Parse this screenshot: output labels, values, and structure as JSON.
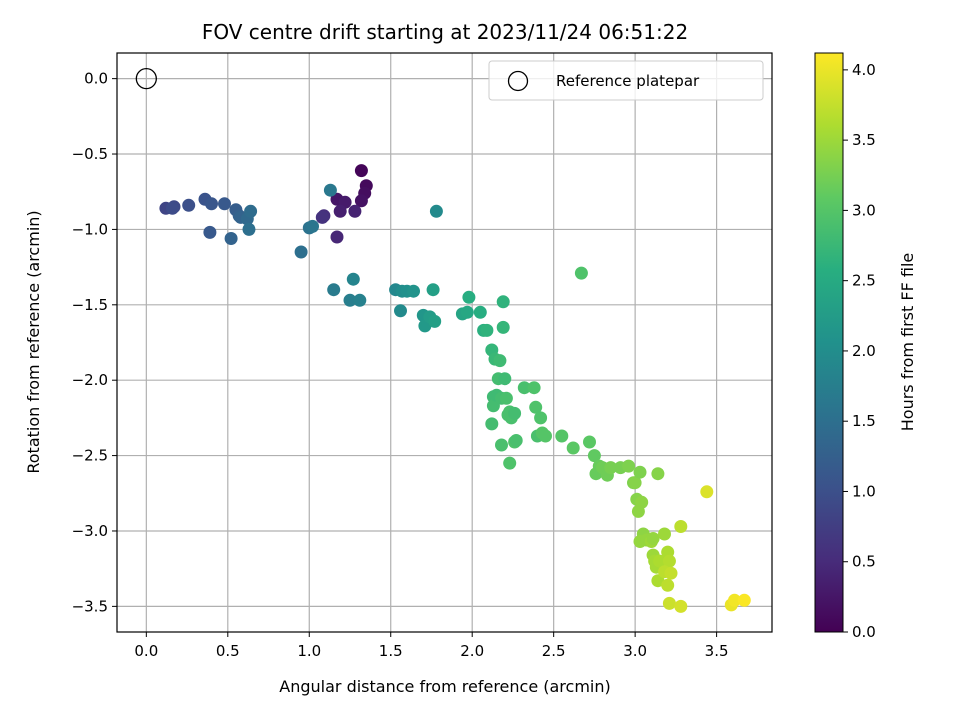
{
  "chart_data": {
    "type": "scatter",
    "title": "FOV centre drift starting at 2023/11/24 06:51:22",
    "xlabel": "Angular distance from reference (arcmin)",
    "ylabel": "Rotation from reference (arcmin)",
    "xlim": [
      -0.18,
      3.84
    ],
    "ylim": [
      -3.67,
      0.17
    ],
    "xticks": [
      0.0,
      0.5,
      1.0,
      1.5,
      2.0,
      2.5,
      3.0,
      3.5
    ],
    "xtick_labels": [
      "0.0",
      "0.5",
      "1.0",
      "1.5",
      "2.0",
      "2.5",
      "3.0",
      "3.5"
    ],
    "yticks": [
      0.0,
      -0.5,
      -1.0,
      -1.5,
      -2.0,
      -2.5,
      -3.0,
      -3.5
    ],
    "ytick_labels": [
      "0.0",
      "−0.5",
      "−1.0",
      "−1.5",
      "−2.0",
      "−2.5",
      "−3.0",
      "−3.5"
    ],
    "grid": true,
    "legend_position": "top-right",
    "reference_point": {
      "label": "Reference platepar",
      "x": 0.0,
      "y": 0.0
    },
    "colorbar": {
      "label": "Hours from first FF file",
      "colormap": "viridis",
      "range": [
        0.0,
        4.12
      ],
      "ticks": [
        0.0,
        0.5,
        1.0,
        1.5,
        2.0,
        2.5,
        3.0,
        3.5,
        4.0
      ],
      "tick_labels": [
        "0.0",
        "0.5",
        "1.0",
        "1.5",
        "2.0",
        "2.5",
        "3.0",
        "3.5",
        "4.0"
      ]
    },
    "points": [
      [
        1.32,
        -0.61,
        0.05
      ],
      [
        1.35,
        -0.71,
        0.1
      ],
      [
        1.34,
        -0.76,
        0.15
      ],
      [
        1.32,
        -0.81,
        0.2
      ],
      [
        1.17,
        -0.8,
        0.25
      ],
      [
        1.22,
        -0.82,
        0.3
      ],
      [
        1.19,
        -0.88,
        0.35
      ],
      [
        1.28,
        -0.88,
        0.4
      ],
      [
        1.17,
        -1.05,
        0.45
      ],
      [
        1.09,
        -0.91,
        0.55
      ],
      [
        1.08,
        -0.92,
        0.6
      ],
      [
        0.12,
        -0.86,
        0.85
      ],
      [
        0.17,
        -0.85,
        0.9
      ],
      [
        0.16,
        -0.86,
        0.95
      ],
      [
        0.26,
        -0.84,
        1.0
      ],
      [
        0.36,
        -0.8,
        1.05
      ],
      [
        0.4,
        -0.83,
        1.1
      ],
      [
        0.48,
        -0.83,
        1.15
      ],
      [
        0.55,
        -0.87,
        1.2
      ],
      [
        0.39,
        -1.02,
        1.15
      ],
      [
        0.52,
        -1.06,
        1.3
      ],
      [
        0.57,
        -0.91,
        1.25
      ],
      [
        0.58,
        -0.92,
        1.3
      ],
      [
        0.62,
        -0.93,
        1.4
      ],
      [
        0.64,
        -0.88,
        1.45
      ],
      [
        0.63,
        -1.0,
        1.5
      ],
      [
        0.95,
        -1.15,
        1.5
      ],
      [
        1.0,
        -0.99,
        1.55
      ],
      [
        1.02,
        -0.98,
        1.6
      ],
      [
        1.13,
        -0.74,
        1.65
      ],
      [
        1.15,
        -1.4,
        1.7
      ],
      [
        1.25,
        -1.47,
        1.75
      ],
      [
        1.27,
        -1.33,
        1.85
      ],
      [
        1.31,
        -1.47,
        1.8
      ],
      [
        1.78,
        -0.88,
        1.95
      ],
      [
        1.53,
        -1.4,
        1.9
      ],
      [
        1.56,
        -1.54,
        1.95
      ],
      [
        1.57,
        -1.41,
        2.0
      ],
      [
        1.6,
        -1.41,
        2.05
      ],
      [
        1.64,
        -1.41,
        2.1
      ],
      [
        1.7,
        -1.57,
        2.15
      ],
      [
        1.71,
        -1.64,
        2.2
      ],
      [
        1.74,
        -1.58,
        2.25
      ],
      [
        1.76,
        -1.4,
        2.3
      ],
      [
        1.77,
        -1.61,
        2.3
      ],
      [
        1.94,
        -1.56,
        2.4
      ],
      [
        1.97,
        -1.55,
        2.45
      ],
      [
        1.98,
        -1.45,
        2.55
      ],
      [
        2.05,
        -1.55,
        2.55
      ],
      [
        2.07,
        -1.67,
        2.6
      ],
      [
        2.09,
        -1.67,
        2.65
      ],
      [
        2.19,
        -1.48,
        2.65
      ],
      [
        2.12,
        -1.8,
        2.7
      ],
      [
        2.14,
        -1.86,
        2.75
      ],
      [
        2.17,
        -1.87,
        2.8
      ],
      [
        2.16,
        -1.99,
        2.85
      ],
      [
        2.19,
        -1.65,
        2.7
      ],
      [
        2.2,
        -1.99,
        2.8
      ],
      [
        2.12,
        -2.29,
        2.85
      ],
      [
        2.13,
        -2.11,
        2.8
      ],
      [
        2.13,
        -2.17,
        2.85
      ],
      [
        2.15,
        -2.1,
        2.8
      ],
      [
        2.18,
        -2.12,
        2.85
      ],
      [
        2.21,
        -2.12,
        2.9
      ],
      [
        2.22,
        -2.23,
        2.9
      ],
      [
        2.23,
        -2.21,
        2.9
      ],
      [
        2.24,
        -2.25,
        2.9
      ],
      [
        2.18,
        -2.43,
        2.9
      ],
      [
        2.23,
        -2.55,
        2.95
      ],
      [
        2.26,
        -2.41,
        2.95
      ],
      [
        2.26,
        -2.22,
        2.85
      ],
      [
        2.27,
        -2.4,
        2.9
      ],
      [
        2.32,
        -2.05,
        2.9
      ],
      [
        2.38,
        -2.05,
        2.95
      ],
      [
        2.39,
        -2.18,
        2.95
      ],
      [
        2.42,
        -2.25,
        2.95
      ],
      [
        2.4,
        -2.37,
        2.9
      ],
      [
        2.43,
        -2.35,
        3.0
      ],
      [
        2.45,
        -2.37,
        3.0
      ],
      [
        2.55,
        -2.37,
        3.0
      ],
      [
        2.62,
        -2.45,
        3.05
      ],
      [
        2.67,
        -1.29,
        2.95
      ],
      [
        2.72,
        -2.41,
        3.05
      ],
      [
        2.75,
        -2.5,
        3.1
      ],
      [
        2.76,
        -2.62,
        3.15
      ],
      [
        2.78,
        -2.57,
        3.15
      ],
      [
        2.8,
        -2.58,
        3.2
      ],
      [
        2.83,
        -2.63,
        3.2
      ],
      [
        2.85,
        -2.58,
        3.25
      ],
      [
        2.91,
        -2.58,
        3.25
      ],
      [
        2.96,
        -2.57,
        3.3
      ],
      [
        2.99,
        -2.68,
        3.3
      ],
      [
        3.0,
        -2.68,
        3.35
      ],
      [
        3.03,
        -2.61,
        3.3
      ],
      [
        3.01,
        -2.79,
        3.35
      ],
      [
        3.02,
        -2.87,
        3.4
      ],
      [
        3.04,
        -2.81,
        3.4
      ],
      [
        3.05,
        -3.02,
        3.4
      ],
      [
        3.03,
        -3.07,
        3.45
      ],
      [
        3.07,
        -3.06,
        3.45
      ],
      [
        3.1,
        -3.07,
        3.5
      ],
      [
        3.11,
        -3.05,
        3.45
      ],
      [
        3.14,
        -2.62,
        3.35
      ],
      [
        3.11,
        -3.16,
        3.5
      ],
      [
        3.12,
        -3.2,
        3.55
      ],
      [
        3.13,
        -3.24,
        3.55
      ],
      [
        3.15,
        -3.2,
        3.6
      ],
      [
        3.18,
        -3.02,
        3.5
      ],
      [
        3.2,
        -3.14,
        3.6
      ],
      [
        3.21,
        -3.2,
        3.65
      ],
      [
        3.14,
        -3.33,
        3.6
      ],
      [
        3.18,
        -3.27,
        3.7
      ],
      [
        3.2,
        -3.36,
        3.7
      ],
      [
        3.22,
        -3.28,
        3.75
      ],
      [
        3.21,
        -3.48,
        3.8
      ],
      [
        3.28,
        -2.97,
        3.7
      ],
      [
        3.28,
        -3.5,
        3.85
      ],
      [
        3.44,
        -2.74,
        3.9
      ],
      [
        3.59,
        -3.49,
        4.0
      ],
      [
        3.61,
        -3.46,
        4.05
      ],
      [
        3.67,
        -3.46,
        4.1
      ]
    ]
  }
}
